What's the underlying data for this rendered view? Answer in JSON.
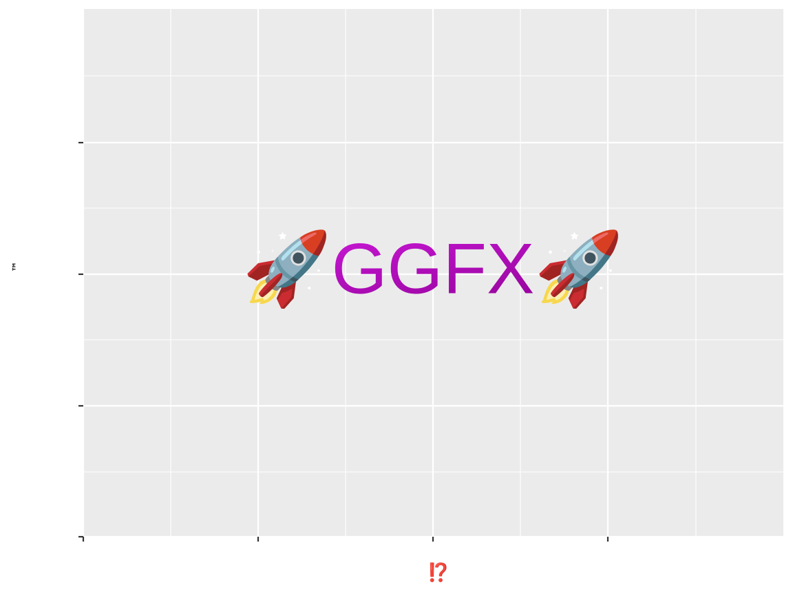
{
  "chart_data": {
    "type": "text",
    "title": "🚀GGFX🚀",
    "x_label": "⁉️",
    "y_label": "™"
  }
}
